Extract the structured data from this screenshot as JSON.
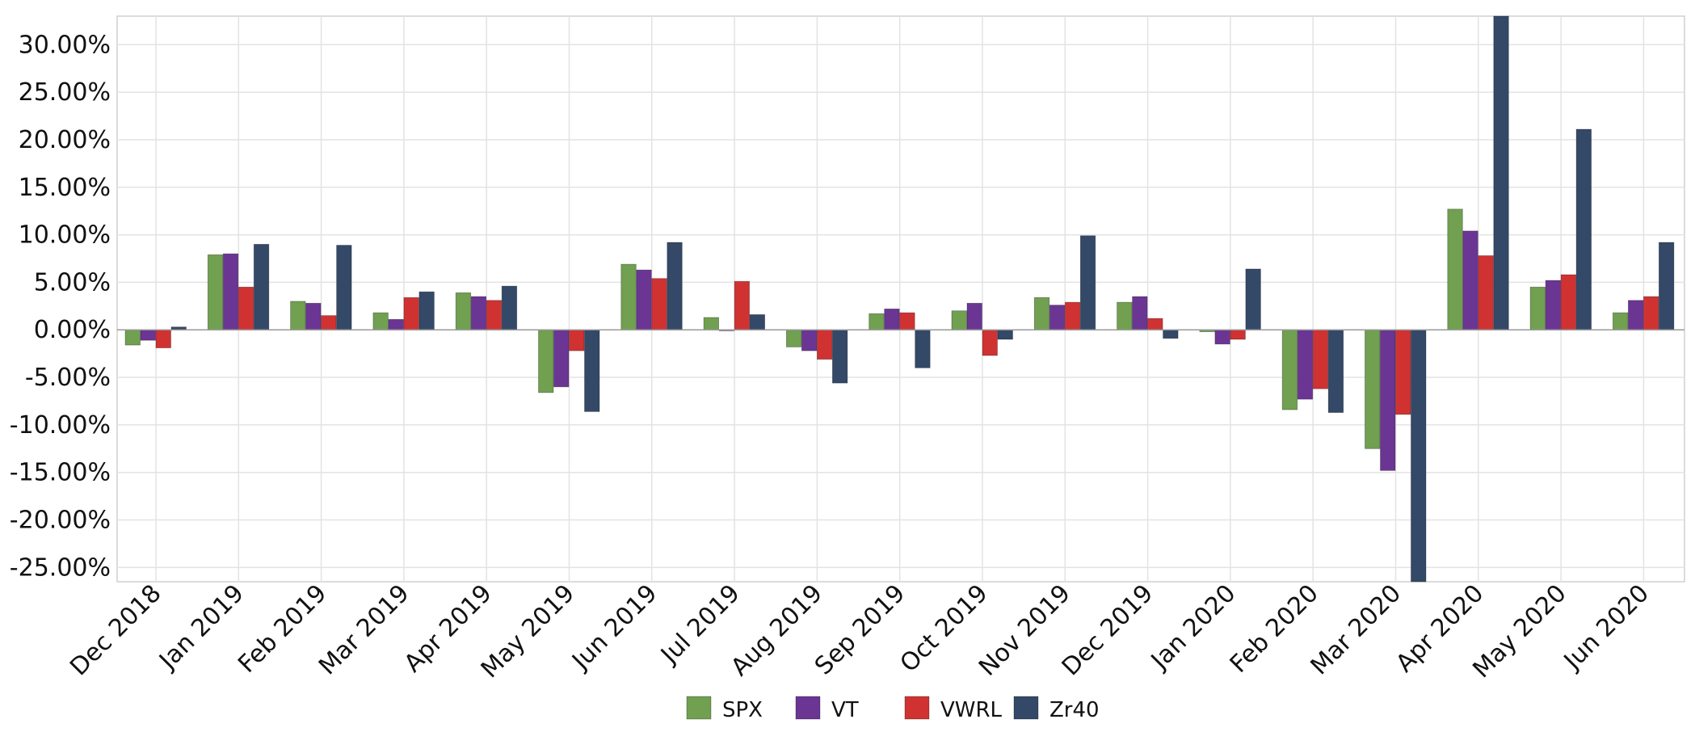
{
  "chart_data": {
    "type": "bar",
    "title": "",
    "xlabel": "",
    "ylabel": "",
    "ylim": [
      -26.5,
      33
    ],
    "yticks": [
      -25,
      -20,
      -15,
      -10,
      -5,
      0,
      5,
      10,
      15,
      20,
      25,
      30
    ],
    "ytick_labels": [
      "-25.00%",
      "-20.00%",
      "-15.00%",
      "-10.00%",
      "-5.00%",
      "0.00%",
      "5.00%",
      "10.00%",
      "15.00%",
      "20.00%",
      "25.00%",
      "30.00%"
    ],
    "grid": true,
    "legend_position": "bottom-center",
    "categories": [
      "Dec 2018",
      "Jan 2019",
      "Feb 2019",
      "Mar 2019",
      "Apr 2019",
      "May 2019",
      "Jun 2019",
      "Jul 2019",
      "Aug 2019",
      "Sep 2019",
      "Oct 2019",
      "Nov 2019",
      "Dec 2019",
      "Jan 2020",
      "Feb 2020",
      "Mar 2020",
      "Apr 2020",
      "May 2020",
      "Jun 2020"
    ],
    "series": [
      {
        "name": "SPX",
        "color": "#70a050",
        "values": [
          -1.6,
          7.9,
          3.0,
          1.8,
          3.9,
          -6.6,
          6.9,
          1.3,
          -1.8,
          1.7,
          2.0,
          3.4,
          2.9,
          -0.2,
          -8.4,
          -12.5,
          12.7,
          4.5,
          1.8
        ]
      },
      {
        "name": "VT",
        "color": "#6b3594",
        "values": [
          -1.1,
          8.0,
          2.8,
          1.1,
          3.5,
          -6.0,
          6.3,
          -0.1,
          -2.2,
          2.2,
          2.8,
          2.6,
          3.5,
          -1.5,
          -7.3,
          -14.8,
          10.4,
          5.2,
          3.1
        ]
      },
      {
        "name": "VWRL",
        "color": "#d03232",
        "values": [
          -1.9,
          4.5,
          1.5,
          3.4,
          3.1,
          -2.2,
          5.4,
          5.1,
          -3.1,
          1.8,
          -2.7,
          2.9,
          1.2,
          -1.0,
          -6.2,
          -8.9,
          7.8,
          5.8,
          3.5
        ]
      },
      {
        "name": "Zr40",
        "color": "#344868",
        "values": [
          0.3,
          9.0,
          8.9,
          4.0,
          4.6,
          -8.6,
          9.2,
          1.6,
          -5.6,
          -4.0,
          -1.0,
          9.9,
          -0.9,
          6.4,
          -8.7,
          -26.5,
          33.0,
          21.1,
          9.2
        ]
      }
    ]
  }
}
